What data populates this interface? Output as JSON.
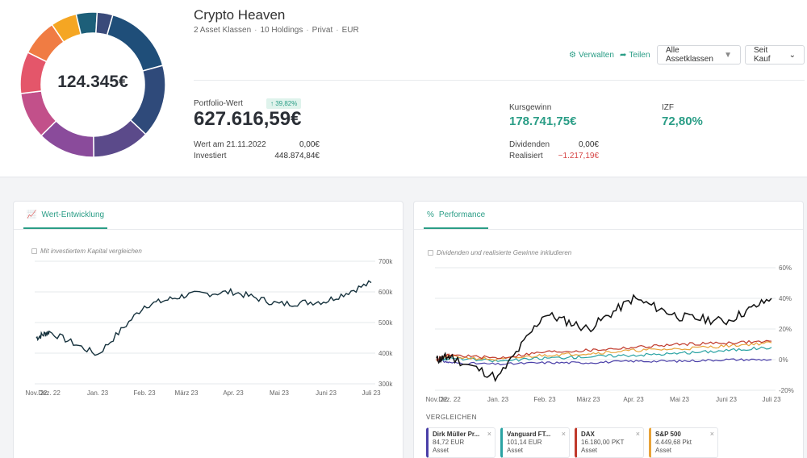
{
  "portfolio": {
    "total": "124.345€",
    "name": "Crypto Heaven",
    "meta": [
      "2 Asset Klassen",
      "10 Holdings",
      "Privat",
      "EUR"
    ],
    "colors": [
      "#1f4e79",
      "#2f4a7a",
      "#5b4a8a",
      "#8a4b9b",
      "#c2508a",
      "#e4566a",
      "#f07c43",
      "#f5a623",
      "#1d5f79",
      "#3a4a7a"
    ]
  },
  "actions": {
    "manage": "Verwalten",
    "share": "Teilen",
    "filter": "Alle Assetklassen",
    "sort": "Seit Kauf"
  },
  "stats": {
    "value_label": "Portfolio-Wert",
    "badge": "39,82%",
    "value": "627.616,59€",
    "date_label": "Wert am 21.11.2022",
    "date_value": "0,00€",
    "invested_label": "Investiert",
    "invested_value": "448.874,84€",
    "gain_label": "Kursgewinn",
    "gain_value": "178.741,75€",
    "irr_label": "IZF",
    "irr_value": "72,80%",
    "div_label": "Dividenden",
    "div_value": "0,00€",
    "real_label": "Realisiert",
    "real_value": "−1.217,19€"
  },
  "value_card": {
    "tab": "Wert-Entwicklung",
    "checkbox": "Mit investiertem Kapital vergleichen",
    "x_labels": [
      "Nov. 22",
      "Dez. 22",
      "Jan. 23",
      "Feb. 23",
      "März 23",
      "Apr. 23",
      "Mai 23",
      "Juni 23",
      "Juli 23"
    ],
    "y_labels": [
      "700k",
      "600k",
      "500k",
      "400k",
      "300k"
    ]
  },
  "perf_card": {
    "tab": "Performance",
    "checkbox": "Dividenden und realisierte Gewinne inkludieren",
    "x_labels": [
      "Nov. 22",
      "Dez. 22",
      "Jan. 23",
      "Feb. 23",
      "März 23",
      "Apr. 23",
      "Mai 23",
      "Juni 23",
      "Juli 23"
    ],
    "y_labels": [
      "60%",
      "40%",
      "20%",
      "0%",
      "-20%"
    ]
  },
  "compare": {
    "title": "VERGLEICHEN",
    "items": [
      {
        "name": "Dirk Müller Pr...",
        "price": "84,72 EUR",
        "type": "Asset",
        "color": "#4a3fa8"
      },
      {
        "name": "Vanguard FT...",
        "price": "101,14 EUR",
        "type": "Asset",
        "color": "#2aa3a3"
      },
      {
        "name": "DAX",
        "price": "16.180,00 PKT",
        "type": "Asset",
        "color": "#c0392b"
      },
      {
        "name": "S&P 500",
        "price": "4.449,68 Pkt",
        "type": "Asset",
        "color": "#e8a33a"
      }
    ]
  },
  "chart_data": [
    {
      "type": "line",
      "title": "Wert-Entwicklung",
      "xlabel": "",
      "ylabel": "",
      "x": [
        "Nov. 22",
        "Dez. 22",
        "Jan. 23",
        "Feb. 23",
        "März 23",
        "Apr. 23",
        "Mai 23",
        "Juni 23",
        "Juli 23"
      ],
      "ylim": [
        300000,
        700000
      ],
      "series": [
        {
          "values": [
            450000,
            470000,
            395000,
            555000,
            590000,
            600000,
            560000,
            570000,
            630000
          ]
        }
      ]
    },
    {
      "type": "line",
      "title": "Performance",
      "xlabel": "",
      "ylabel": "",
      "x": [
        "Nov. 22",
        "Dez. 22",
        "Jan. 23",
        "Feb. 23",
        "März 23",
        "Apr. 23",
        "Mai 23",
        "Juni 23",
        "Juli 23"
      ],
      "ylim": [
        -20,
        60
      ],
      "series": [
        {
          "values": [
            0,
            2,
            -12,
            30,
            20,
            40,
            28,
            25,
            40
          ]
        },
        {
          "name": "DAX",
          "values": [
            0,
            3,
            1,
            5,
            6,
            8,
            10,
            11,
            12
          ]
        },
        {
          "name": "S&P 500",
          "values": [
            0,
            2,
            0,
            3,
            4,
            6,
            7,
            9,
            11
          ]
        },
        {
          "name": "Vanguard FT...",
          "values": [
            0,
            1,
            -1,
            1,
            2,
            3,
            4,
            6,
            8
          ]
        },
        {
          "name": "Dirk Müller Pr...",
          "values": [
            0,
            -2,
            -3,
            -2,
            -2,
            -1,
            -1,
            0,
            0
          ]
        }
      ]
    }
  ]
}
